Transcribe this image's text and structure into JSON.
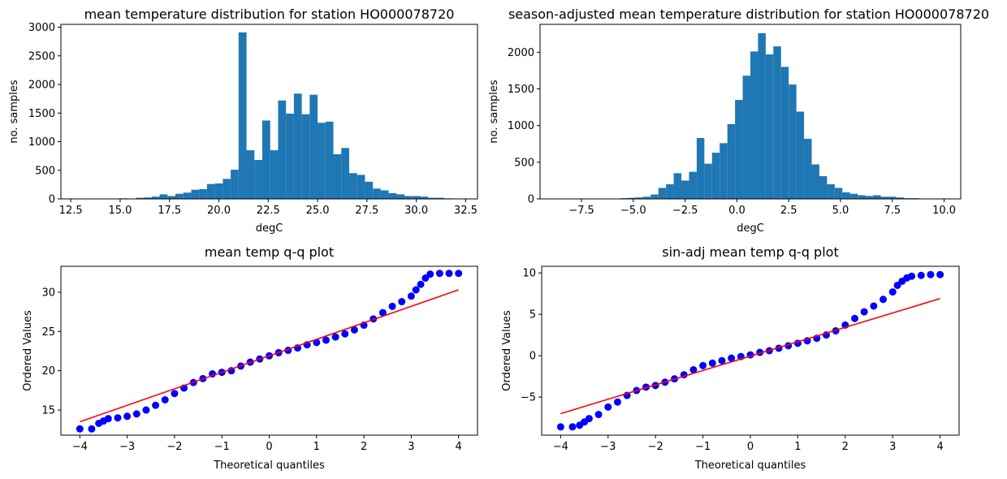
{
  "chart_data": [
    {
      "type": "bar",
      "subtype": "histogram",
      "title": "mean temperature distribution for station HO000078720",
      "xlabel": "degC",
      "ylabel": "no. samples",
      "xlim": [
        12.0,
        33.1
      ],
      "ylim": [
        0,
        3050
      ],
      "bin_start": 12.6,
      "bin_width": 0.4,
      "values": [
        0,
        0,
        0,
        0,
        5,
        0,
        10,
        0,
        20,
        25,
        40,
        80,
        50,
        90,
        110,
        160,
        170,
        260,
        270,
        350,
        510,
        2910,
        850,
        680,
        1370,
        850,
        1720,
        1490,
        1840,
        1480,
        1820,
        1330,
        1350,
        780,
        890,
        450,
        420,
        300,
        180,
        150,
        100,
        80,
        50,
        50,
        40,
        20,
        20,
        10,
        5,
        0,
        0,
        0,
        0,
        0,
        0,
        0,
        0,
        0,
        0,
        0,
        0,
        0,
        0,
        0,
        0,
        0,
        0,
        0,
        0,
        0,
        0,
        0,
        0,
        0,
        0,
        0,
        0,
        0,
        0,
        0,
        0,
        0,
        0,
        0,
        0,
        0,
        0,
        0,
        0,
        0,
        0,
        0,
        0,
        0,
        0,
        0,
        0,
        0,
        0,
        5
      ],
      "xticks": [
        12.5,
        15.0,
        17.5,
        20.0,
        22.5,
        25.0,
        27.5,
        30.0,
        32.5
      ],
      "xtick_labels": [
        "12.5",
        "15.0",
        "17.5",
        "20.0",
        "22.5",
        "25.0",
        "27.5",
        "30.0",
        "32.5"
      ],
      "yticks": [
        0,
        500,
        1000,
        1500,
        2000,
        2500,
        3000
      ],
      "ytick_labels": [
        "0",
        "500",
        "1000",
        "1500",
        "2000",
        "2500",
        "3000"
      ],
      "color": "#1f77b4"
    },
    {
      "type": "bar",
      "subtype": "histogram",
      "title": "season-adjusted mean temperature distribution for station HO000078720",
      "xlabel": "degC",
      "ylabel": "no. samples",
      "xlim": [
        -9.5,
        10.8
      ],
      "ylim": [
        0,
        2380
      ],
      "bin_start": -8.6,
      "bin_width": 0.37,
      "values": [
        0,
        0,
        0,
        0,
        0,
        0,
        0,
        5,
        10,
        15,
        20,
        30,
        60,
        150,
        200,
        350,
        250,
        370,
        830,
        480,
        630,
        760,
        1020,
        1350,
        1680,
        2010,
        2260,
        1970,
        2080,
        1800,
        1560,
        1190,
        820,
        470,
        310,
        200,
        150,
        90,
        70,
        50,
        40,
        50,
        30,
        30,
        20,
        10,
        10,
        5,
        5,
        0,
        0,
        0,
        0,
        0,
        0
      ],
      "xticks": [
        -7.5,
        -5.0,
        -2.5,
        0.0,
        2.5,
        5.0,
        7.5,
        10.0
      ],
      "xtick_labels": [
        "−7.5",
        "−5.0",
        "−2.5",
        "0.0",
        "2.5",
        "5.0",
        "7.5",
        "10.0"
      ],
      "yticks": [
        0,
        500,
        1000,
        1500,
        2000
      ],
      "ytick_labels": [
        "0",
        "500",
        "1000",
        "1500",
        "2000"
      ],
      "color": "#1f77b4"
    },
    {
      "type": "scatter",
      "subtype": "qq",
      "title": "mean temp q-q plot",
      "xlabel": "Theoretical quantiles",
      "ylabel": "Ordered Values",
      "xlim": [
        -4.4,
        4.4
      ],
      "ylim": [
        11.8,
        33.3
      ],
      "points": [
        [
          -4.0,
          12.6
        ],
        [
          -3.75,
          12.6
        ],
        [
          -3.6,
          13.3
        ],
        [
          -3.5,
          13.6
        ],
        [
          -3.4,
          13.9
        ],
        [
          -3.2,
          14.0
        ],
        [
          -3.0,
          14.2
        ],
        [
          -2.8,
          14.5
        ],
        [
          -2.6,
          15.0
        ],
        [
          -2.4,
          15.6
        ],
        [
          -2.2,
          16.3
        ],
        [
          -2.0,
          17.1
        ],
        [
          -1.8,
          17.8
        ],
        [
          -1.6,
          18.5
        ],
        [
          -1.4,
          19.0
        ],
        [
          -1.2,
          19.6
        ],
        [
          -1.0,
          19.8
        ],
        [
          -0.8,
          20.0
        ],
        [
          -0.6,
          20.6
        ],
        [
          -0.4,
          21.1
        ],
        [
          -0.2,
          21.5
        ],
        [
          0.0,
          21.9
        ],
        [
          0.2,
          22.3
        ],
        [
          0.4,
          22.6
        ],
        [
          0.6,
          22.9
        ],
        [
          0.8,
          23.3
        ],
        [
          1.0,
          23.6
        ],
        [
          1.2,
          23.9
        ],
        [
          1.4,
          24.3
        ],
        [
          1.6,
          24.7
        ],
        [
          1.8,
          25.2
        ],
        [
          2.0,
          25.8
        ],
        [
          2.2,
          26.6
        ],
        [
          2.4,
          27.4
        ],
        [
          2.6,
          28.2
        ],
        [
          2.8,
          28.8
        ],
        [
          3.0,
          29.5
        ],
        [
          3.1,
          30.3
        ],
        [
          3.2,
          31.0
        ],
        [
          3.3,
          31.8
        ],
        [
          3.4,
          32.3
        ],
        [
          3.6,
          32.4
        ],
        [
          3.8,
          32.4
        ],
        [
          4.0,
          32.4
        ]
      ],
      "fit_line": {
        "x": [
          -4.0,
          4.0
        ],
        "y": [
          13.5,
          30.3
        ],
        "color": "#ff0000"
      },
      "xticks": [
        -4,
        -3,
        -2,
        -1,
        0,
        1,
        2,
        3,
        4
      ],
      "xtick_labels": [
        "−4",
        "−3",
        "−2",
        "−1",
        "0",
        "1",
        "2",
        "3",
        "4"
      ],
      "yticks": [
        15,
        20,
        25,
        30
      ],
      "ytick_labels": [
        "15",
        "20",
        "25",
        "30"
      ],
      "color": "#0000ff"
    },
    {
      "type": "scatter",
      "subtype": "qq",
      "title": "sin-adj mean temp q-q plot",
      "xlabel": "Theoretical quantiles",
      "ylabel": "Ordered Values",
      "xlim": [
        -4.4,
        4.4
      ],
      "ylim": [
        -9.6,
        10.8
      ],
      "points": [
        [
          -4.0,
          -8.6
        ],
        [
          -3.75,
          -8.6
        ],
        [
          -3.6,
          -8.4
        ],
        [
          -3.5,
          -8.0
        ],
        [
          -3.4,
          -7.6
        ],
        [
          -3.2,
          -7.1
        ],
        [
          -3.0,
          -6.2
        ],
        [
          -2.8,
          -5.6
        ],
        [
          -2.6,
          -4.8
        ],
        [
          -2.4,
          -4.2
        ],
        [
          -2.2,
          -3.8
        ],
        [
          -2.0,
          -3.6
        ],
        [
          -1.8,
          -3.2
        ],
        [
          -1.6,
          -2.8
        ],
        [
          -1.4,
          -2.3
        ],
        [
          -1.2,
          -1.7
        ],
        [
          -1.0,
          -1.2
        ],
        [
          -0.8,
          -0.9
        ],
        [
          -0.6,
          -0.6
        ],
        [
          -0.4,
          -0.3
        ],
        [
          -0.2,
          -0.1
        ],
        [
          0.0,
          0.1
        ],
        [
          0.2,
          0.4
        ],
        [
          0.4,
          0.6
        ],
        [
          0.6,
          0.9
        ],
        [
          0.8,
          1.2
        ],
        [
          1.0,
          1.5
        ],
        [
          1.2,
          1.8
        ],
        [
          1.4,
          2.1
        ],
        [
          1.6,
          2.5
        ],
        [
          1.8,
          3.0
        ],
        [
          2.0,
          3.7
        ],
        [
          2.2,
          4.5
        ],
        [
          2.4,
          5.3
        ],
        [
          2.6,
          6.0
        ],
        [
          2.8,
          6.8
        ],
        [
          3.0,
          7.7
        ],
        [
          3.1,
          8.5
        ],
        [
          3.2,
          9.0
        ],
        [
          3.3,
          9.4
        ],
        [
          3.4,
          9.6
        ],
        [
          3.6,
          9.7
        ],
        [
          3.8,
          9.8
        ],
        [
          4.0,
          9.8
        ]
      ],
      "fit_line": {
        "x": [
          -4.0,
          4.0
        ],
        "y": [
          -7.0,
          6.9
        ],
        "color": "#ff0000"
      },
      "xticks": [
        -4,
        -3,
        -2,
        -1,
        0,
        1,
        2,
        3,
        4
      ],
      "xtick_labels": [
        "−4",
        "−3",
        "−2",
        "−1",
        "0",
        "1",
        "2",
        "3",
        "4"
      ],
      "yticks": [
        -5,
        0,
        5,
        10
      ],
      "ytick_labels": [
        "−5",
        "0",
        "5",
        "10"
      ],
      "color": "#0000ff"
    }
  ]
}
